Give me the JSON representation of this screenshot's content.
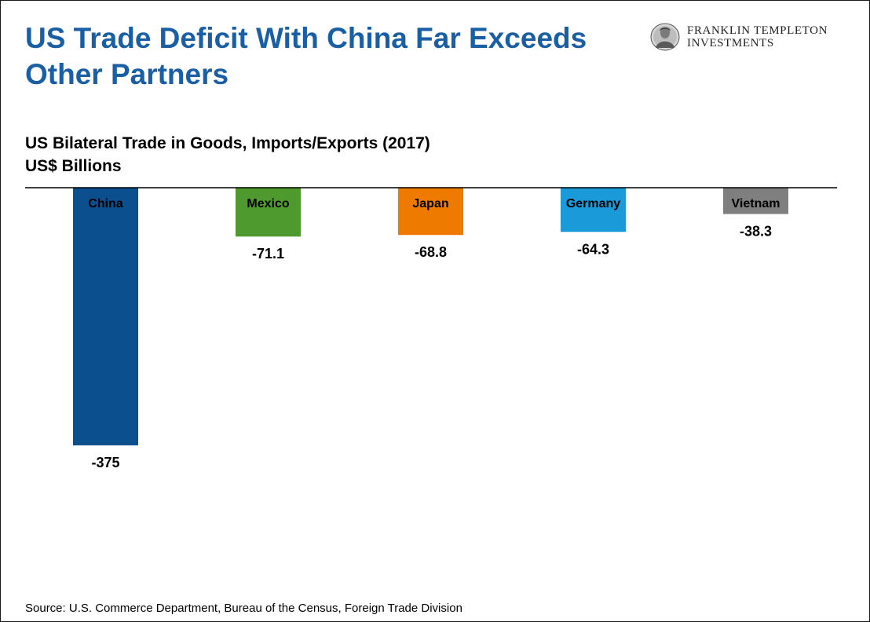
{
  "title": "US Trade Deficit With China Far Exceeds Other Partners",
  "logo": {
    "line1": "FRANKLIN TEMPLETON",
    "line2": "INVESTMENTS"
  },
  "subtitle": {
    "line1": "US Bilateral Trade in Goods, Imports/Exports (2017)",
    "line2": "US$ Billions"
  },
  "source": "Source: U.S. Commerce Department, Bureau of the Census, Foreign Trade Division",
  "chart_data": {
    "type": "bar",
    "title": "US Bilateral Trade in Goods, Imports/Exports (2017)",
    "ylabel": "US$ Billions",
    "xlabel": "",
    "categories": [
      "China",
      "Mexico",
      "Japan",
      "Germany",
      "Vietnam"
    ],
    "values": [
      -375,
      -71.1,
      -68.8,
      -64.3,
      -38.3
    ],
    "value_labels": [
      "-375",
      "-71.1",
      "-68.8",
      "-64.3",
      "-38.3"
    ],
    "colors": [
      "#0b4f8f",
      "#4e9a2f",
      "#ee7a00",
      "#1a9ad9",
      "#7f7f7f"
    ],
    "ylim": [
      -400,
      0
    ],
    "grid": false
  }
}
